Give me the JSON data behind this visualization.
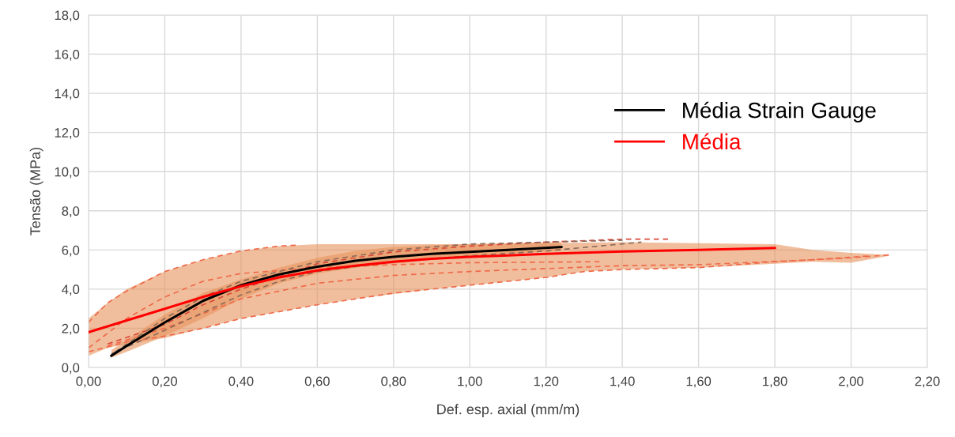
{
  "chart_data": {
    "type": "line",
    "xlabel": "Def. esp. axial (mm/m)",
    "ylabel": "Tensão (MPa)",
    "xlim": [
      0,
      2.2
    ],
    "ylim": [
      0,
      18
    ],
    "xticks": [
      {
        "value": 0,
        "label": "0,00"
      },
      {
        "value": 0.2,
        "label": "0,20"
      },
      {
        "value": 0.4,
        "label": "0,40"
      },
      {
        "value": 0.6,
        "label": "0,60"
      },
      {
        "value": 0.8,
        "label": "0,80"
      },
      {
        "value": 1.0,
        "label": "1,00"
      },
      {
        "value": 1.2,
        "label": "1,20"
      },
      {
        "value": 1.4,
        "label": "1,40"
      },
      {
        "value": 1.6,
        "label": "1,60"
      },
      {
        "value": 1.8,
        "label": "1,80"
      },
      {
        "value": 2.0,
        "label": "2,00"
      },
      {
        "value": 2.2,
        "label": "2,20"
      }
    ],
    "yticks": [
      {
        "value": 0,
        "label": "0,0"
      },
      {
        "value": 2,
        "label": "2,0"
      },
      {
        "value": 4,
        "label": "4,0"
      },
      {
        "value": 6,
        "label": "6,0"
      },
      {
        "value": 8,
        "label": "8,0"
      },
      {
        "value": 10,
        "label": "10,0"
      },
      {
        "value": 12,
        "label": "12,0"
      },
      {
        "value": 14,
        "label": "14,0"
      },
      {
        "value": 16,
        "label": "16,0"
      },
      {
        "value": 18,
        "label": "18,0"
      }
    ],
    "grid": true,
    "legend": "right",
    "marker": "none",
    "line_style": "solid",
    "series": [
      {
        "color": "#ee6a4a",
        "line_style": "dashed",
        "x": [
          0,
          0.05,
          0.1,
          0.2,
          0.3,
          0.4,
          0.5,
          0.55
        ],
        "values": [
          2.3,
          3.3,
          3.9,
          4.9,
          5.5,
          5.95,
          6.2,
          6.25
        ]
      },
      {
        "color": "#ee6a4a",
        "line_style": "dashed",
        "x": [
          0,
          0.1,
          0.2,
          0.3,
          0.4,
          0.6,
          0.8,
          1.0,
          1.34
        ],
        "values": [
          1.0,
          2.5,
          3.6,
          4.4,
          4.8,
          5.1,
          5.25,
          5.35,
          5.4
        ]
      },
      {
        "color": "#ee6a4a",
        "line_style": "dashed",
        "x": [
          0,
          0.1,
          0.2,
          0.3,
          0.4,
          0.6,
          0.8,
          1.0,
          1.2,
          1.3,
          1.4,
          1.6,
          1.8,
          2.0,
          2.1
        ],
        "values": [
          0.8,
          1.3,
          1.6,
          2.0,
          2.5,
          3.2,
          3.8,
          4.2,
          4.6,
          4.9,
          5.0,
          5.1,
          5.4,
          5.6,
          5.75
        ]
      },
      {
        "color": "#d9483a",
        "line_style": "dashed",
        "x": [
          0.05,
          0.2,
          0.3,
          0.4,
          0.6,
          0.8,
          1.0,
          1.2,
          1.4,
          1.52
        ],
        "values": [
          1.2,
          2.2,
          3.2,
          4.0,
          5.3,
          5.9,
          6.2,
          6.4,
          6.55,
          6.55
        ]
      },
      {
        "color": "#ee6a4a",
        "line_style": "dashed",
        "x": [
          0.05,
          0.2,
          0.4,
          0.6,
          0.8,
          1.0,
          1.2,
          1.4,
          1.6,
          1.9,
          2.05
        ],
        "values": [
          1.1,
          2.0,
          3.5,
          4.3,
          4.7,
          4.9,
          5.05,
          5.2,
          5.25,
          5.5,
          5.7
        ]
      },
      {
        "color": "#8a6a58",
        "line_style": "dashed",
        "x": [
          0.06,
          0.2,
          0.3,
          0.4,
          0.5,
          0.6,
          0.8,
          1.0,
          1.2,
          1.45
        ],
        "values": [
          0.7,
          1.9,
          2.8,
          3.7,
          4.4,
          4.9,
          5.4,
          5.7,
          5.95,
          6.4
        ]
      },
      {
        "color": "#8a6a58",
        "line_style": "dashed",
        "x": [
          0.07,
          0.2,
          0.3,
          0.4,
          0.6,
          0.8,
          1.0,
          1.2,
          1.4
        ],
        "values": [
          0.8,
          2.5,
          3.6,
          4.4,
          5.4,
          6.0,
          6.3,
          6.4,
          6.5
        ]
      },
      {
        "name": "Média Strain Gauge",
        "color": "#000000",
        "x": [
          0.06,
          0.1,
          0.2,
          0.3,
          0.4,
          0.5,
          0.6,
          0.7,
          0.8,
          0.9,
          1.0,
          1.1,
          1.24
        ],
        "values": [
          0.6,
          1.1,
          2.3,
          3.4,
          4.2,
          4.75,
          5.15,
          5.45,
          5.65,
          5.8,
          5.9,
          6.0,
          6.15
        ],
        "lower": [
          0.5,
          0.8,
          1.6,
          2.5,
          3.5,
          4.3,
          4.8,
          5.1,
          5.3,
          5.5,
          5.65,
          5.8,
          5.95
        ],
        "upper": [
          0.9,
          1.4,
          2.7,
          3.8,
          4.5,
          5.1,
          5.6,
          5.95,
          6.15,
          6.25,
          6.3,
          6.35,
          6.4
        ]
      },
      {
        "name": "Média",
        "color": "#ff0000",
        "x": [
          0,
          0.05,
          0.1,
          0.2,
          0.3,
          0.4,
          0.5,
          0.6,
          0.7,
          0.8,
          0.9,
          1.0,
          1.1,
          1.2,
          1.3,
          1.4,
          1.6,
          1.8,
          1.9,
          2.0,
          2.1
        ],
        "values": [
          1.8,
          2.1,
          2.4,
          3.0,
          3.6,
          4.15,
          4.6,
          4.95,
          5.2,
          5.4,
          5.55,
          5.65,
          5.72,
          5.8,
          5.86,
          5.92,
          6.0,
          6.1,
          null,
          null,
          null
        ],
        "lower": [
          0.6,
          1.0,
          1.2,
          1.5,
          2.0,
          2.5,
          2.85,
          3.2,
          3.5,
          3.75,
          4.0,
          4.2,
          4.4,
          4.6,
          4.9,
          5.0,
          5.1,
          5.3,
          5.4,
          5.35,
          5.7
        ],
        "upper": [
          2.5,
          3.3,
          4.0,
          4.9,
          5.5,
          5.95,
          6.2,
          6.3,
          6.3,
          6.3,
          6.3,
          6.3,
          6.32,
          6.35,
          6.38,
          6.4,
          6.35,
          6.3,
          6.0,
          5.85,
          5.75
        ]
      }
    ]
  }
}
